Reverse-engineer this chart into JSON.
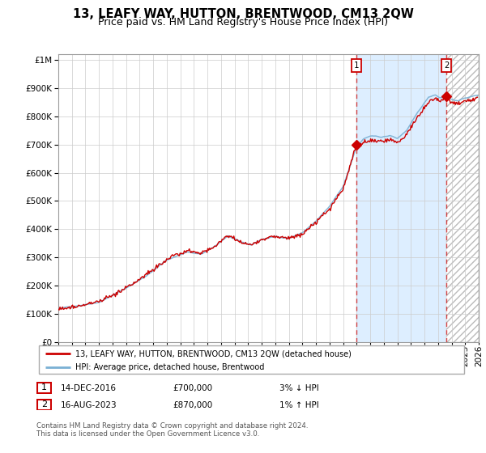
{
  "title": "13, LEAFY WAY, HUTTON, BRENTWOOD, CM13 2QW",
  "subtitle": "Price paid vs. HM Land Registry's House Price Index (HPI)",
  "ytick_values": [
    0,
    100000,
    200000,
    300000,
    400000,
    500000,
    600000,
    700000,
    800000,
    900000,
    1000000
  ],
  "ylim": [
    0,
    1020000
  ],
  "x_start_year": 1995,
  "x_end_year": 2026,
  "hpi_color": "#7ab0d4",
  "price_color": "#cc0000",
  "shaded_color": "#ddeeff",
  "marker1_year": 2016.97,
  "marker1_price": 700000,
  "marker2_year": 2023.62,
  "marker2_price": 870000,
  "legend_label1": "13, LEAFY WAY, HUTTON, BRENTWOOD, CM13 2QW (detached house)",
  "legend_label2": "HPI: Average price, detached house, Brentwood",
  "note1_label": "1",
  "note1_date": "14-DEC-2016",
  "note1_price": "£700,000",
  "note1_pct": "3% ↓ HPI",
  "note2_label": "2",
  "note2_date": "16-AUG-2023",
  "note2_price": "£870,000",
  "note2_pct": "1% ↑ HPI",
  "footnote": "Contains HM Land Registry data © Crown copyright and database right 2024.\nThis data is licensed under the Open Government Licence v3.0.",
  "background_color": "#ffffff",
  "grid_color": "#cccccc",
  "title_fontsize": 10.5,
  "subtitle_fontsize": 9,
  "tick_fontsize": 7.5
}
